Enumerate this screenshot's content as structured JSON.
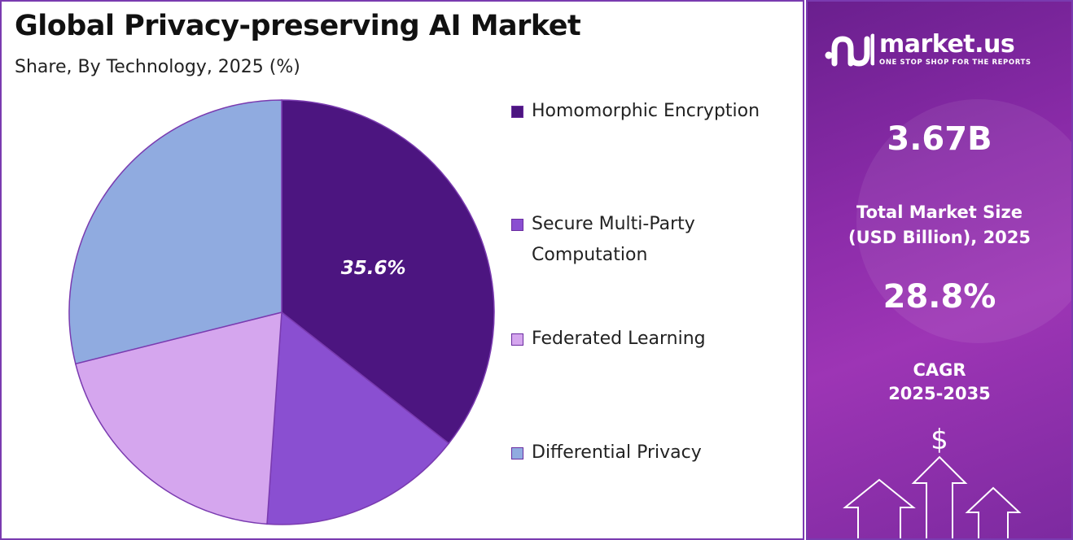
{
  "header": {
    "title": "Global Privacy-preserving AI Market",
    "subtitle": "Share, By Technology, 2025 (%)"
  },
  "chart_data": {
    "type": "pie",
    "title": "Global Privacy-preserving AI Market",
    "subtitle": "Share, By Technology, 2025 (%)",
    "categories": [
      "Homomorphic Encryption",
      "Secure Multi-Party Computation",
      "Federated Learning",
      "Differential Privacy"
    ],
    "values": [
      35.6,
      15.5,
      20.0,
      28.9
    ],
    "colors": [
      "#4c1580",
      "#8a4fd1",
      "#d5a6ee",
      "#90abe0"
    ],
    "data_labels": [
      "35.6%",
      "",
      "",
      ""
    ],
    "start_angle_deg": 0,
    "direction": "clockwise",
    "legend_position": "right"
  },
  "legend": {
    "items": [
      {
        "label": "Homomorphic Encryption",
        "color": "#4c1580"
      },
      {
        "label": "Secure Multi-Party Computation",
        "color": "#8a4fd1"
      },
      {
        "label": "Federated Learning",
        "color": "#d5a6ee"
      },
      {
        "label": "Differential Privacy",
        "color": "#90abe0"
      }
    ]
  },
  "sidebar": {
    "brand": {
      "name": "market.us",
      "tagline": "ONE STOP SHOP FOR THE REPORTS",
      "icon": "market-us-logo-icon"
    },
    "market_size": {
      "value": "3.67B",
      "label_line1": "Total Market Size",
      "label_line2": "(USD Billion), 2025"
    },
    "cagr": {
      "value": "28.8%",
      "label_line1": "CAGR",
      "label_line2": "2025-2035"
    },
    "decor_icons": [
      "dollar-icon",
      "up-arrow-icon"
    ],
    "dollar_symbol": "$",
    "accent_color": "#8a2ba8"
  }
}
